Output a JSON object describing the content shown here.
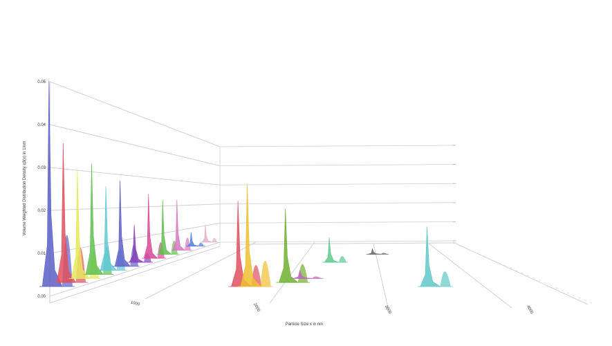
{
  "chart_data": {
    "type": "area",
    "projection": "3d",
    "ylabel": "Volume Weighted Distribution Density q3(x) in 1/nm",
    "xlabel": "Particle Size x in nm",
    "y_ticks": [
      "0.00",
      "0.01",
      "0.02",
      "0.03",
      "0.04",
      "0.05"
    ],
    "ylim": [
      0,
      0.05
    ],
    "x_ticks": [
      "1000",
      "2000",
      "3000",
      "4000"
    ],
    "grid": true,
    "legend": "none",
    "series": [
      {
        "color": "#5a5fc8",
        "peak_x": 0,
        "peak_height": 0.048,
        "depth": 0
      },
      {
        "color": "#e0505e",
        "peak_x": 0,
        "peak_height": 0.034,
        "depth": 1
      },
      {
        "color": "#e8e85a",
        "peak_x": 0,
        "peak_height": 0.028,
        "depth": 2
      },
      {
        "color": "#60c050",
        "peak_x": 0,
        "peak_height": 0.03,
        "depth": 3
      },
      {
        "color": "#60c8d8",
        "peak_x": 0,
        "peak_height": 0.024,
        "depth": 4
      },
      {
        "color": "#6060c8",
        "peak_x": 0,
        "peak_height": 0.026,
        "depth": 5
      },
      {
        "color": "#8840b8",
        "peak_x": 0,
        "peak_height": 0.012,
        "depth": 6
      },
      {
        "color": "#d84898",
        "peak_x": 0,
        "peak_height": 0.022,
        "depth": 7
      },
      {
        "color": "#60c050",
        "peak_x": 0,
        "peak_height": 0.02,
        "depth": 8
      },
      {
        "color": "#d878c0",
        "peak_x": 0,
        "peak_height": 0.02,
        "depth": 9
      },
      {
        "color": "#5080e0",
        "peak_x": 0,
        "peak_height": 0.006,
        "depth": 10
      },
      {
        "color": "#e0b0c8",
        "peak_x": 0,
        "peak_height": 0.008,
        "depth": 11
      },
      {
        "color": "#e05060",
        "peak_x": 2050,
        "peak_height": 0.02,
        "depth": 0
      },
      {
        "color": "#f0c030",
        "peak_x": 2150,
        "peak_height": 0.024,
        "depth": 0
      },
      {
        "color": "#70b030",
        "peak_x": 2500,
        "peak_height": 0.018,
        "depth": 1
      },
      {
        "color": "#60c890",
        "peak_x": 2700,
        "peak_height": 0.008,
        "depth": 6
      },
      {
        "color": "#c060c0",
        "peak_x": 2600,
        "peak_height": 0.002,
        "depth": 2
      },
      {
        "color": "#666666",
        "peak_x": 3200,
        "peak_height": 0.002,
        "depth": 8
      },
      {
        "color": "#60c8c8",
        "peak_x": 4100,
        "peak_height": 0.014,
        "depth": 0
      }
    ]
  }
}
